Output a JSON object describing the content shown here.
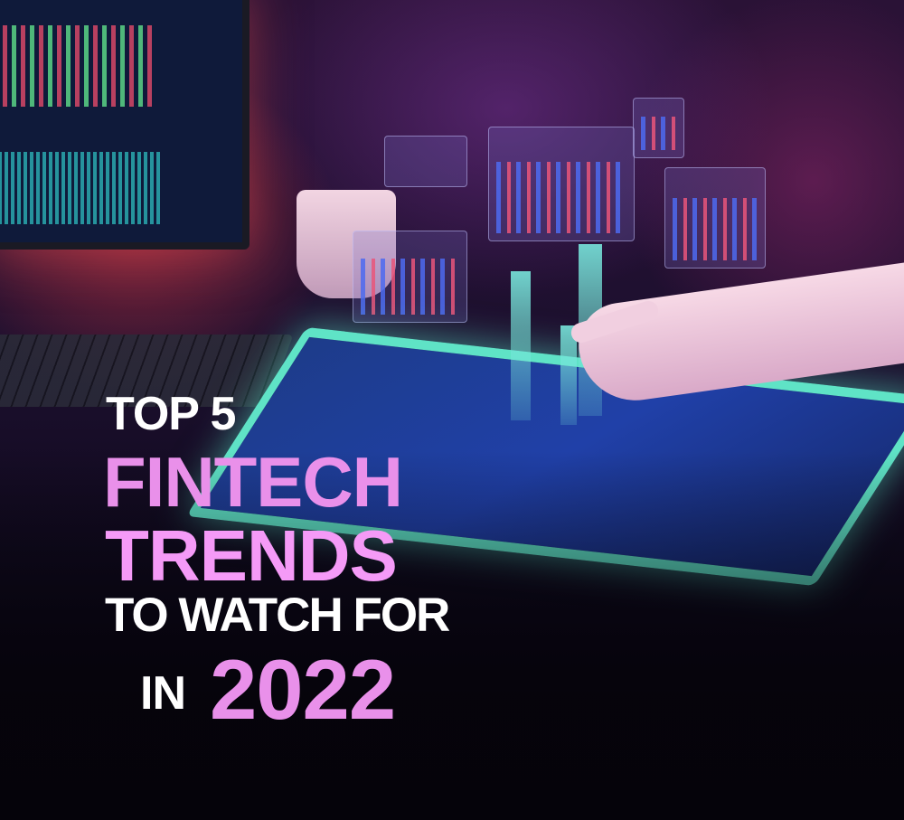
{
  "headline": {
    "line1": "TOP 5",
    "line2": "FINTECH",
    "line3": "TRENDS",
    "line4": "TO WATCH FOR",
    "line5_prefix": "IN",
    "line5_year": "2022"
  },
  "colors": {
    "white_text": "#ffffff",
    "pink_text": "#e990ea",
    "background": "#0b0716",
    "tablet_glow": "#5fe3c6"
  }
}
